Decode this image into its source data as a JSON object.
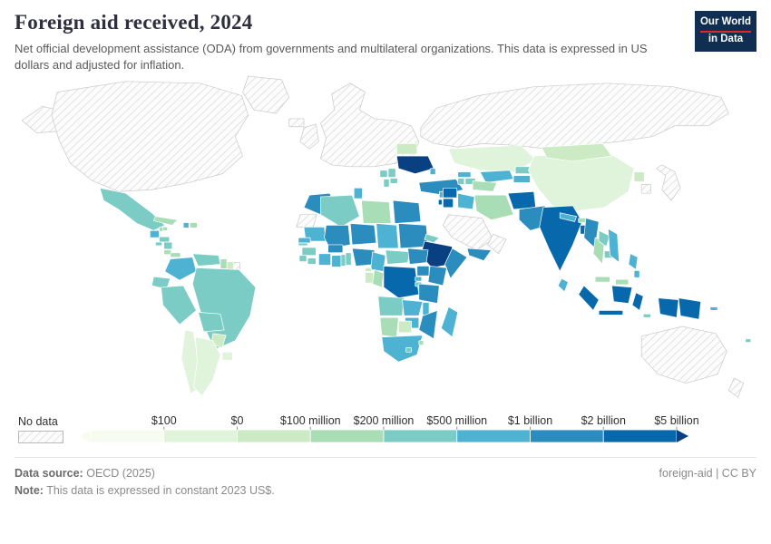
{
  "header": {
    "title": "Foreign aid received, 2024",
    "subtitle": "Net official development assistance (ODA) from governments and multilateral organizations. This data is expressed in US dollars and adjusted for inflation.",
    "logo": {
      "line1": "Our World",
      "line2": "in Data"
    }
  },
  "theme": {
    "logo_bg": "#0f2e52",
    "logo_accent": "#e0262d",
    "hatch_line": "#d8d8d8",
    "country_border": "#ffffff",
    "nodata_border": "#c9c9c9"
  },
  "chart_data": {
    "type": "choropleth_map",
    "title": "Foreign aid received, 2024",
    "value_unit": "constant 2023 US$",
    "legend": {
      "no_data_label": "No data",
      "tick_labels": [
        "$100",
        "$0",
        "$100 million",
        "$200 million",
        "$500 million",
        "$1 billion",
        "$2 billion",
        "$5 billion"
      ],
      "colors": [
        "#f7fcf0",
        "#e0f3db",
        "#ccebc5",
        "#a8ddb5",
        "#7bccc4",
        "#4eb3d3",
        "#2b8cbe",
        "#0868ac",
        "#084081"
      ],
      "scale_note": "bin index 1 = lightest (lowest), 9 = darkest (more than $5 billion)"
    },
    "no_data_regions": [
      "United States",
      "Canada",
      "Alaska",
      "Greenland",
      "Iceland",
      "United Kingdom",
      "Western and Central Europe",
      "Russia",
      "Saudi Arabia",
      "Oman and Gulf states",
      "Japan",
      "South Korea",
      "Australia",
      "New Zealand",
      "Western Sahara",
      "French Guiana"
    ],
    "countries": {
      "mexico": 5,
      "guatemala": 6,
      "belize": 4,
      "honduras": 5,
      "el-salvador": 5,
      "nicaragua": 5,
      "costa-rica": 4,
      "panama": 4,
      "cuba": 4,
      "jamaica": 4,
      "haiti": 6,
      "dominican-republic": 4,
      "colombia": 6,
      "venezuela": 5,
      "guyana": 4,
      "suriname": 3,
      "ecuador": 5,
      "peru": 5,
      "brazil": 5,
      "bolivia": 5,
      "paraguay": 3,
      "chile": 2,
      "argentina": 2,
      "uruguay": 2,
      "ukraine": 9,
      "belarus": 3,
      "moldova": 6,
      "bosnia-and-herzegovina": 5,
      "serbia": 5,
      "albania": 5,
      "north-macedonia": 5,
      "turkey": 7,
      "georgia": 6,
      "armenia": 5,
      "azerbaijan": 5,
      "morocco": 7,
      "tunisia": 6,
      "algeria": 5,
      "libya": 4,
      "egypt": 7,
      "mauritania": 6,
      "mali": 7,
      "niger": 7,
      "chad": 6,
      "sudan": 7,
      "eritrea": 5,
      "djibouti": 5,
      "senegal": 6,
      "gambia": 5,
      "guinea": 5,
      "sierra-leone": 5,
      "liberia": 5,
      "cote-divoire": 6,
      "ghana": 6,
      "burkina-faso": 7,
      "togo": 5,
      "benin": 5,
      "nigeria": 7,
      "cameroon": 6,
      "central-african-republic": 5,
      "south-sudan": 7,
      "ethiopia": 9,
      "somalia": 7,
      "kenya": 7,
      "uganda": 7,
      "rwanda": 6,
      "burundi": 5,
      "democratic-republic-of-congo": 8,
      "congo": 4,
      "gabon": 3,
      "equatorial-guinea": 3,
      "angola": 5,
      "zambia": 6,
      "malawi": 6,
      "tanzania": 7,
      "mozambique": 7,
      "zimbabwe": 6,
      "madagascar": 6,
      "namibia": 4,
      "botswana": 3,
      "south-africa": 6,
      "lesotho": 5,
      "eswatini": 4,
      "syria": 8,
      "lebanon": 6,
      "palestine": 8,
      "jordan": 8,
      "iraq": 6,
      "iran": 4,
      "yemen": 7,
      "kazakhstan": 2,
      "uzbekistan": 6,
      "turkmenistan": 4,
      "kyrgyzstan": 5,
      "tajikistan": 6,
      "afghanistan": 8,
      "pakistan": 7,
      "india": 8,
      "nepal": 6,
      "bhutan": 4,
      "bangladesh": 8,
      "sri-lanka": 6,
      "myanmar": 7,
      "thailand": 4,
      "laos": 5,
      "cambodia": 5,
      "vietnam": 6,
      "malaysia": 4,
      "indonesia": 8,
      "philippines": 6,
      "papua-new-guinea": 8,
      "timor-leste": 5,
      "solomon-islands": 6,
      "fiji": 5,
      "mongolia": 3,
      "china": 2,
      "north-korea": 3
    }
  },
  "footer": {
    "source_label": "Data source:",
    "source_value": "OECD (2025)",
    "note_label": "Note:",
    "note_value": "This data is expressed in constant 2023 US$.",
    "license": "foreign-aid | CC BY"
  }
}
